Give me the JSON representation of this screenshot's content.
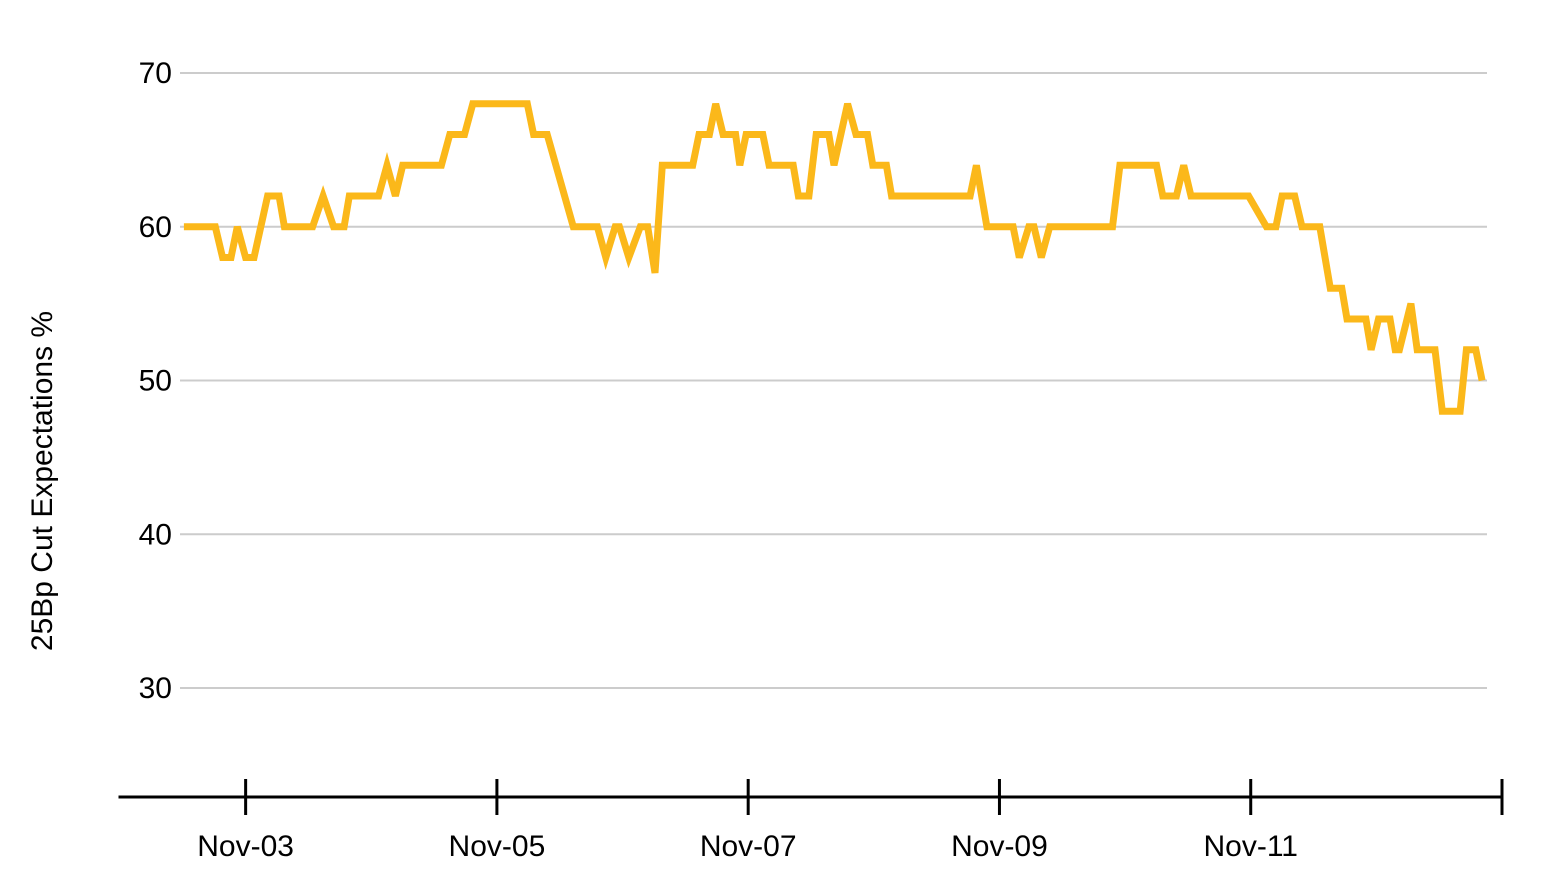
{
  "chart_data": {
    "type": "line",
    "title": "",
    "ylabel": "25Bp Cut Expectations %",
    "xlabel": "",
    "grid": "horizontal-only",
    "legend": "none",
    "y_ticks": [
      70,
      60,
      50,
      40,
      30
    ],
    "ylim": [
      30,
      70
    ],
    "x_unit": "months since Nov-2003",
    "xlim": [
      -12,
      120
    ],
    "x_ticks": [
      {
        "label": "Nov-03",
        "t": 0
      },
      {
        "label": "Nov-05",
        "t": 24
      },
      {
        "label": "Nov-07",
        "t": 48
      },
      {
        "label": "Nov-09",
        "t": 72
      },
      {
        "label": "Nov-11",
        "t": 96
      },
      {
        "label": "",
        "t": 120
      }
    ],
    "series": [
      {
        "name": "25Bp Cut Expectations %",
        "color": "#FBB81A",
        "points": [
          [
            -5.9,
            60
          ],
          [
            -2.9,
            60
          ],
          [
            -2.2,
            58
          ],
          [
            -1.4,
            58
          ],
          [
            -0.8,
            60
          ],
          [
            0.0,
            58
          ],
          [
            0.8,
            58
          ],
          [
            2.1,
            62
          ],
          [
            3.2,
            62
          ],
          [
            3.7,
            60
          ],
          [
            6.4,
            60
          ],
          [
            7.4,
            62
          ],
          [
            8.4,
            60
          ],
          [
            9.4,
            60
          ],
          [
            9.9,
            62
          ],
          [
            12.7,
            62
          ],
          [
            13.5,
            64
          ],
          [
            14.3,
            62
          ],
          [
            15.0,
            64
          ],
          [
            18.7,
            64
          ],
          [
            19.5,
            66
          ],
          [
            20.9,
            66
          ],
          [
            21.7,
            68
          ],
          [
            26.9,
            68
          ],
          [
            27.5,
            66
          ],
          [
            28.8,
            66
          ],
          [
            31.3,
            60
          ],
          [
            33.6,
            60
          ],
          [
            34.4,
            58
          ],
          [
            35.3,
            60
          ],
          [
            35.7,
            60
          ],
          [
            36.6,
            58
          ],
          [
            37.7,
            60
          ],
          [
            38.4,
            60
          ],
          [
            39.1,
            57
          ],
          [
            39.8,
            64
          ],
          [
            42.7,
            64
          ],
          [
            43.3,
            66
          ],
          [
            44.3,
            66
          ],
          [
            44.9,
            68
          ],
          [
            45.6,
            66
          ],
          [
            46.8,
            66
          ],
          [
            47.2,
            64
          ],
          [
            47.8,
            66
          ],
          [
            49.4,
            66
          ],
          [
            50.0,
            64
          ],
          [
            52.3,
            64
          ],
          [
            52.8,
            62
          ],
          [
            53.8,
            62
          ],
          [
            54.5,
            66
          ],
          [
            55.7,
            66
          ],
          [
            56.2,
            64
          ],
          [
            57.5,
            68
          ],
          [
            58.3,
            66
          ],
          [
            59.4,
            66
          ],
          [
            59.9,
            64
          ],
          [
            61.2,
            64
          ],
          [
            61.7,
            62
          ],
          [
            69.2,
            62
          ],
          [
            69.8,
            64
          ],
          [
            70.8,
            60
          ],
          [
            73.3,
            60
          ],
          [
            73.9,
            58
          ],
          [
            74.8,
            60
          ],
          [
            75.3,
            60
          ],
          [
            76.0,
            58
          ],
          [
            76.8,
            60
          ],
          [
            82.8,
            60
          ],
          [
            83.5,
            64
          ],
          [
            87.0,
            64
          ],
          [
            87.6,
            62
          ],
          [
            88.9,
            62
          ],
          [
            89.6,
            64
          ],
          [
            90.3,
            62
          ],
          [
            95.8,
            62
          ],
          [
            97.5,
            60
          ],
          [
            98.4,
            60
          ],
          [
            99.0,
            62
          ],
          [
            100.2,
            62
          ],
          [
            100.9,
            60
          ],
          [
            102.6,
            60
          ],
          [
            103.6,
            56
          ],
          [
            104.7,
            56
          ],
          [
            105.2,
            54
          ],
          [
            107.0,
            54
          ],
          [
            107.5,
            52
          ],
          [
            108.2,
            54
          ],
          [
            109.3,
            54
          ],
          [
            109.8,
            52
          ],
          [
            110.2,
            52
          ],
          [
            111.3,
            55
          ],
          [
            111.9,
            52
          ],
          [
            113.6,
            52
          ],
          [
            114.3,
            48
          ],
          [
            116.0,
            48
          ],
          [
            116.6,
            52
          ],
          [
            117.5,
            52
          ],
          [
            118.1,
            50
          ]
        ]
      }
    ]
  },
  "colors": {
    "line": "#FBB81A",
    "gridline": "#CCCCCC",
    "axis": "#000000",
    "text": "#000000",
    "background": "#FFFFFF"
  }
}
